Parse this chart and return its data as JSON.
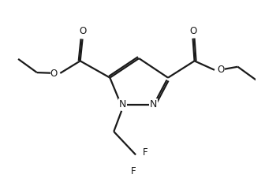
{
  "background": "#ffffff",
  "line_color": "#1a1a1a",
  "line_width": 1.6,
  "font_size": 8.5,
  "fig_width": 3.36,
  "fig_height": 2.32,
  "dpi": 100,
  "N1": [
    4.7,
    3.55
  ],
  "N2": [
    5.65,
    3.55
  ],
  "C3": [
    6.1,
    4.4
  ],
  "C4": [
    5.2,
    5.0
  ],
  "C5": [
    4.3,
    4.4
  ],
  "xlim": [
    1.2,
    8.8
  ],
  "ylim": [
    1.2,
    6.8
  ]
}
